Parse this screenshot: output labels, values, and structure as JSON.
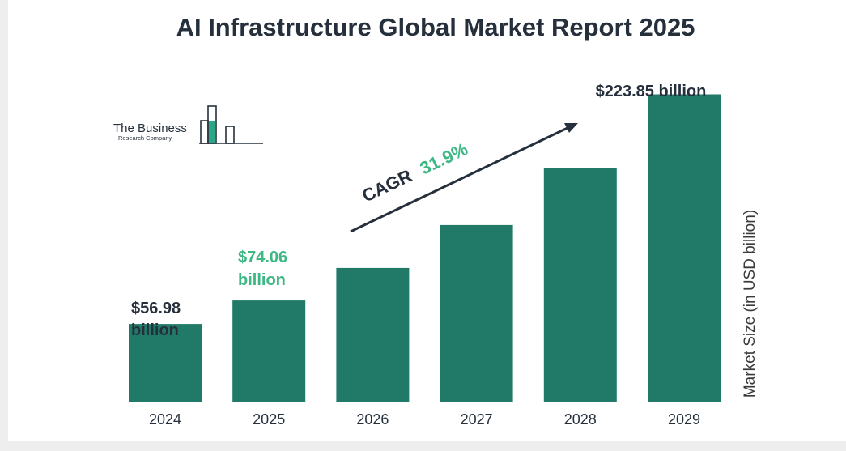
{
  "chart_data": {
    "type": "bar",
    "title": "AI Infrastructure Global Market Report 2025",
    "categories": [
      "2024",
      "2025",
      "2026",
      "2027",
      "2028",
      "2029"
    ],
    "values": [
      56.98,
      74.06,
      97.7,
      128.9,
      170.0,
      223.85
    ],
    "ylabel": "Market Size (in USD billion)",
    "ylim": [
      0,
      240
    ],
    "grid": false,
    "data_labels": {
      "2024": {
        "value": "$56.98",
        "unit": "billion"
      },
      "2025": {
        "value": "$74.06",
        "unit": "billion"
      },
      "2029": {
        "value": "$223.85 billion"
      }
    },
    "annotation": {
      "cagr_label": "CAGR",
      "cagr_value": "31.9%"
    }
  },
  "colors": {
    "bar": "#217a68",
    "title": "#26303d",
    "label_dark": "#26303d",
    "label_accent": "#3db784",
    "arrow": "#26303d",
    "axis_label": "#3a3a3a",
    "logo_accent": "#2aa886"
  },
  "logo": {
    "line1": "The Business",
    "line2": "Research Company"
  }
}
